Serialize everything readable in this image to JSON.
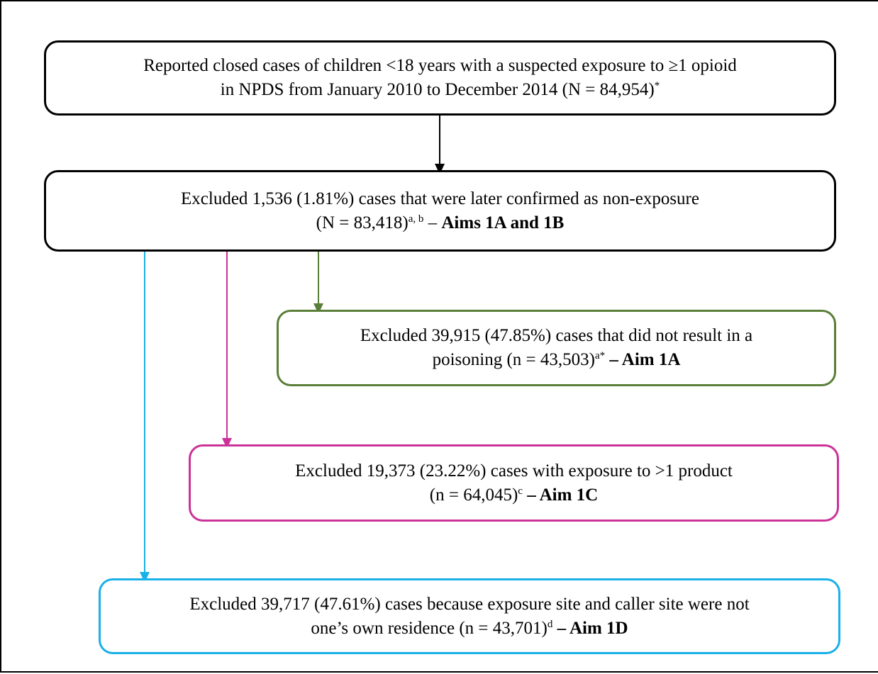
{
  "nodes": [
    {
      "line1": "Reported closed cases of children <18 years with a suspected exposure to ≥1 opioid",
      "line2": "in NPDS from January 2010 to December 2014 (N = 84,954)",
      "sup": "*"
    },
    {
      "line1": "Excluded 1,536 (1.81%) cases that were later confirmed as non-exposure",
      "line2": "(N = 83,418)",
      "sup": "a, b",
      "sep": "–",
      "bold": "Aims 1A and 1B"
    },
    {
      "line1": "Excluded 39,915 (47.85%) cases that did not result in a",
      "line2": "poisoning (n = 43,503)",
      "sup": "a*",
      "bold": "– Aim 1A"
    },
    {
      "line1": "Excluded 19,373 (23.22%) cases with exposure to >1 product",
      "line2": "(n = 64,045)",
      "sup": "c",
      "bold": "– Aim 1C"
    },
    {
      "line1": "Excluded 39,717 (47.61%) cases because exposure site and caller site were not",
      "line2": "one’s own residence (n = 43,701)",
      "sup": "d",
      "bold": "– Aim 1D"
    }
  ]
}
